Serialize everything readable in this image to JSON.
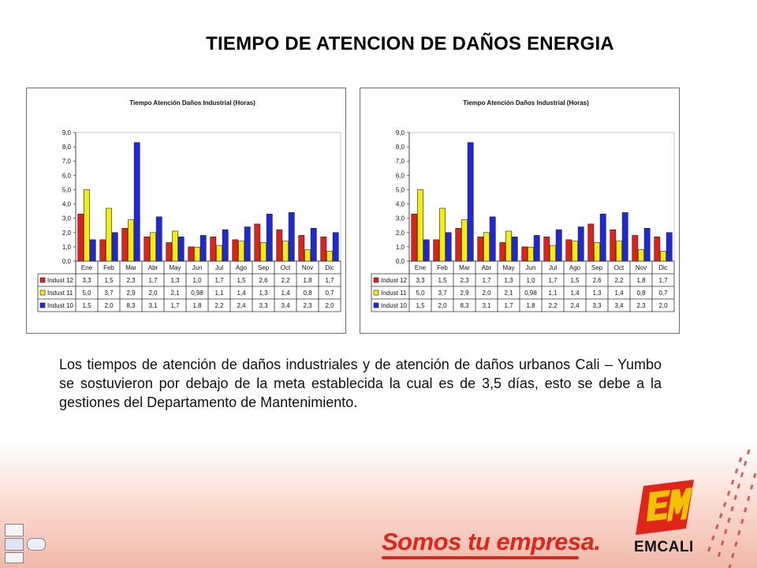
{
  "page": {
    "title": "TIEMPO DE ATENCION DE DAÑOS ENERGIA",
    "body_text": "Los tiempos de atención de daños industriales y de atención de daños urbanos Cali – Yumbo  se sostuvieron por debajo de la meta establecida la cual es de 3,5 días, esto se debe a la gestiones del Departamento de Mantenimiento.",
    "slogan": "Somos tu empresa.",
    "brand": "EMCALI",
    "colors": {
      "slogan": "#e0251b",
      "logo_red": "#e0251b",
      "logo_yellow": "#f2c200"
    },
    "icons": [
      "emcali-logo",
      "certification-logos"
    ]
  },
  "chart_data": [
    {
      "type": "bar",
      "title": "Tiempo Atención Daños Industrial (Horas)",
      "categories": [
        "Ene",
        "Feb",
        "Mar",
        "Abr",
        "May",
        "Jun",
        "Jul",
        "Ago",
        "Sep",
        "Oct",
        "Nov",
        "Dic"
      ],
      "ylim": [
        0,
        9
      ],
      "yticks": [
        "0,0",
        "1,0",
        "2,0",
        "3,0",
        "4,0",
        "5,0",
        "6,0",
        "7,0",
        "8,0",
        "9,0"
      ],
      "grid": false,
      "legend": "table-below",
      "series": [
        {
          "name": "Indust 12",
          "color": "#e0201c",
          "values": [
            3.3,
            1.5,
            2.3,
            1.7,
            1.3,
            1.0,
            1.7,
            1.5,
            2.6,
            2.2,
            1.8,
            1.7
          ],
          "labels": [
            "3,3",
            "1,5",
            "2,3",
            "1,7",
            "1,3",
            "1,0",
            "1,7",
            "1,5",
            "2,6",
            "2,2",
            "1,8",
            "1,7"
          ]
        },
        {
          "name": "Indust 11",
          "color": "#f5ee0c",
          "values": [
            5.0,
            3.7,
            2.9,
            2.0,
            2.1,
            0.98,
            1.1,
            1.4,
            1.3,
            1.4,
            0.8,
            0.7
          ],
          "labels": [
            "5,0",
            "3,7",
            "2,9",
            "2,0",
            "2,1",
            "0,98",
            "1,1",
            "1,4",
            "1,3",
            "1,4",
            "0,8",
            "0,7"
          ]
        },
        {
          "name": "Indust 10",
          "color": "#1d28d8",
          "values": [
            1.5,
            2.0,
            8.3,
            3.1,
            1.7,
            1.8,
            2.2,
            2.4,
            3.3,
            3.4,
            2.3,
            2.0
          ],
          "labels": [
            "1,5",
            "2,0",
            "8,3",
            "3,1",
            "1,7",
            "1,8",
            "2,2",
            "2,4",
            "3,3",
            "3,4",
            "2,3",
            "2,0"
          ]
        }
      ]
    },
    {
      "type": "bar",
      "title": "Tiempo Atención Daños Industrial (Horas)",
      "categories": [
        "Ene",
        "Feb",
        "Mar",
        "Abr",
        "May",
        "Jun",
        "Jul",
        "Ago",
        "Sep",
        "Oct",
        "Nov",
        "Dic"
      ],
      "ylim": [
        0,
        9
      ],
      "yticks": [
        "0,0",
        "1,0",
        "2,0",
        "3,0",
        "4,0",
        "5,0",
        "6,0",
        "7,0",
        "8,0",
        "9,0"
      ],
      "grid": false,
      "legend": "table-below",
      "series": [
        {
          "name": "Indust 12",
          "color": "#e0201c",
          "values": [
            3.3,
            1.5,
            2.3,
            1.7,
            1.3,
            1.0,
            1.7,
            1.5,
            2.6,
            2.2,
            1.8,
            1.7
          ],
          "labels": [
            "3,3",
            "1,5",
            "2,3",
            "1,7",
            "1,3",
            "1,0",
            "1,7",
            "1,5",
            "2,6",
            "2,2",
            "1,8",
            "1,7"
          ]
        },
        {
          "name": "Indust 11",
          "color": "#f5ee0c",
          "values": [
            5.0,
            3.7,
            2.9,
            2.0,
            2.1,
            0.98,
            1.1,
            1.4,
            1.3,
            1.4,
            0.8,
            0.7
          ],
          "labels": [
            "5,0",
            "3,7",
            "2,9",
            "2,0",
            "2,1",
            "0,98",
            "1,1",
            "1,4",
            "1,3",
            "1,4",
            "0,8",
            "0,7"
          ]
        },
        {
          "name": "Indust 10",
          "color": "#1d28d8",
          "values": [
            1.5,
            2.0,
            8.3,
            3.1,
            1.7,
            1.8,
            2.2,
            2.4,
            3.3,
            3.4,
            2.3,
            2.0
          ],
          "labels": [
            "1,5",
            "2,0",
            "8,3",
            "3,1",
            "1,7",
            "1,8",
            "2,2",
            "2,4",
            "3,3",
            "3,4",
            "2,3",
            "2,0"
          ]
        }
      ]
    }
  ]
}
